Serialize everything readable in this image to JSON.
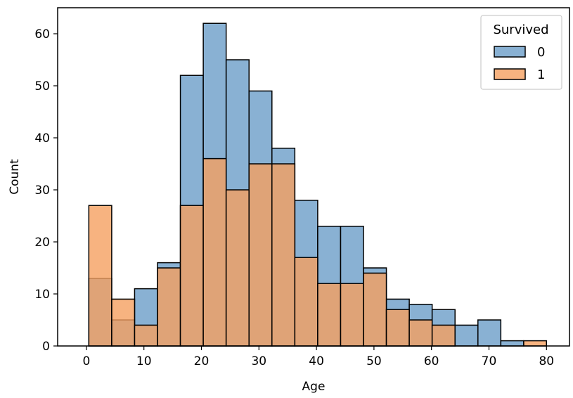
{
  "chart_data": {
    "type": "bar",
    "subtype": "histogram (overlaid)",
    "xlabel": "Age",
    "ylabel": "Count",
    "xlim": [
      -5,
      84
    ],
    "ylim": [
      0,
      65
    ],
    "xticks": [
      0,
      10,
      20,
      30,
      40,
      50,
      60,
      70,
      80
    ],
    "yticks": [
      0,
      10,
      20,
      30,
      40,
      50,
      60
    ],
    "bin_edges": [
      0.42,
      4.4,
      8.38,
      12.36,
      16.34,
      20.32,
      24.3,
      28.28,
      32.26,
      36.24,
      40.22,
      44.2,
      48.18,
      52.16,
      56.14,
      60.12,
      64.1,
      68.08,
      72.06,
      76.04,
      80.0
    ],
    "legend": {
      "title": "Survived",
      "position": "top-right"
    },
    "series": [
      {
        "name": "0",
        "color": "#6b9ec8",
        "values": [
          13,
          5,
          11,
          16,
          52,
          62,
          55,
          49,
          38,
          28,
          23,
          23,
          15,
          9,
          8,
          7,
          4,
          5,
          1,
          0
        ]
      },
      {
        "name": "1",
        "color": "#f5a060",
        "values": [
          27,
          9,
          4,
          15,
          27,
          36,
          30,
          35,
          35,
          17,
          12,
          12,
          14,
          7,
          5,
          4,
          0,
          0,
          0,
          1
        ]
      }
    ]
  }
}
